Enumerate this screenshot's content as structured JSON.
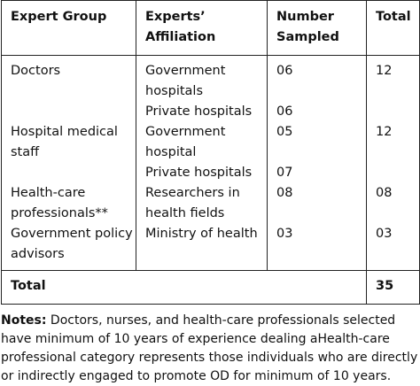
{
  "headers": [
    "Expert Group",
    "Experts’ Affiliation",
    "Number Sampled",
    "Total"
  ],
  "rows": [
    {
      "group": "Doctors",
      "affiliation": "Government hospitals",
      "number": "06",
      "total": "12"
    },
    {
      "group": "",
      "affiliation": "Private hospitals",
      "number": "06",
      "total": ""
    },
    {
      "group": "Hospital medical staff",
      "affiliation": "Government hospital",
      "number": "05",
      "total": "12"
    },
    {
      "group": "",
      "affiliation": "Private hospitals",
      "number": "07",
      "total": ""
    },
    {
      "group": "Health-care professionals**",
      "affiliation": "Researchers in health fields",
      "number": "08",
      "total": "08"
    },
    {
      "group": "Government policy advisors",
      "affiliation": "Ministry of health",
      "number": "03",
      "total": "03"
    }
  ],
  "total_row": {
    "label": "Total",
    "value": "35"
  },
  "notes": {
    "label": "Notes:",
    "text": "Doctors, nurses, and health-care professionals selected have minimum of 10 years of experience dealing aHealth-care professional category represents those individuals who are directly or indirectly engaged to promote OD for minimum of 10 years."
  }
}
